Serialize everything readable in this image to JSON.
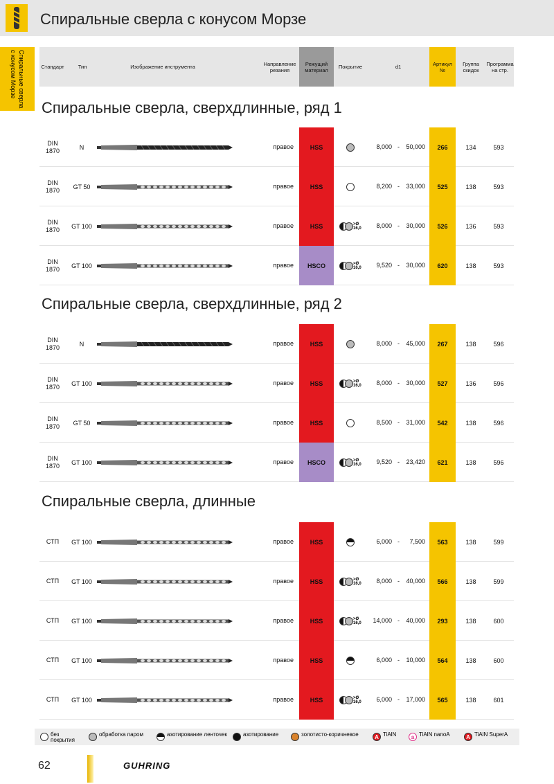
{
  "header": {
    "title": "Спиральные сверла с конусом Морзе"
  },
  "side_tab": {
    "lines": [
      "Спиральные сверла",
      "с конусом Морзе"
    ]
  },
  "columns": [
    "Стандарт",
    "Тип",
    "Изображение инструмента",
    "Направление резания",
    "Режущий материал",
    "Покрытие",
    "d1",
    "Артикул №",
    "Группа скидок",
    "Программа на стр."
  ],
  "sections": [
    {
      "title": "Спиральные сверла, сверхдлинные, ряд 1",
      "rows": [
        {
          "standard": "DIN 1870",
          "type": "N",
          "direction": "правое",
          "material": "HSS",
          "coating": "steam",
          "d1_from": "8,000",
          "dash": "-",
          "d1_to": "50,000",
          "article": "266",
          "group": "134",
          "page": "593"
        },
        {
          "standard": "DIN 1870",
          "type": "GT 50",
          "direction": "правое",
          "material": "HSS",
          "coating": "none",
          "d1_from": "8,200",
          "dash": "-",
          "d1_to": "33,000",
          "article": "525",
          "group": "138",
          "page": "593"
        },
        {
          "standard": "DIN 1870",
          "type": "GT 100",
          "direction": "правое",
          "material": "HSS",
          "coating": "split",
          "coating_note": ">Ø 16,0",
          "d1_from": "8,000",
          "dash": "-",
          "d1_to": "30,000",
          "article": "526",
          "group": "136",
          "page": "593"
        },
        {
          "standard": "DIN 1870",
          "type": "GT 100",
          "direction": "правое",
          "material": "HSCO",
          "coating": "split",
          "coating_note": ">Ø 16,0",
          "d1_from": "9,520",
          "dash": "-",
          "d1_to": "30,000",
          "article": "620",
          "group": "138",
          "page": "593"
        }
      ]
    },
    {
      "title": "Спиральные сверла, сверхдлинные, ряд 2",
      "rows": [
        {
          "standard": "DIN 1870",
          "type": "N",
          "direction": "правое",
          "material": "HSS",
          "coating": "steam",
          "d1_from": "8,000",
          "dash": "-",
          "d1_to": "45,000",
          "article": "267",
          "group": "138",
          "page": "596"
        },
        {
          "standard": "DIN 1870",
          "type": "GT 100",
          "direction": "правое",
          "material": "HSS",
          "coating": "split",
          "coating_note": ">Ø 16,0",
          "d1_from": "8,000",
          "dash": "-",
          "d1_to": "30,000",
          "article": "527",
          "group": "136",
          "page": "596"
        },
        {
          "standard": "DIN 1870",
          "type": "GT 50",
          "direction": "правое",
          "material": "HSS",
          "coating": "none",
          "d1_from": "8,500",
          "dash": "-",
          "d1_to": "31,000",
          "article": "542",
          "group": "138",
          "page": "596"
        },
        {
          "standard": "DIN 1870",
          "type": "GT 100",
          "direction": "правое",
          "material": "HSCO",
          "coating": "split",
          "coating_note": ">Ø 16,0",
          "d1_from": "9,520",
          "dash": "-",
          "d1_to": "23,420",
          "article": "621",
          "group": "138",
          "page": "596"
        }
      ]
    },
    {
      "title": "Спиральные сверла, длинные",
      "rows": [
        {
          "standard": "СТП",
          "type": "GT 100",
          "direction": "правое",
          "material": "HSS",
          "coating": "band",
          "d1_from": "6,000",
          "dash": "-",
          "d1_to": "7,500",
          "article": "563",
          "group": "138",
          "page": "599"
        },
        {
          "standard": "СТП",
          "type": "GT 100",
          "direction": "правое",
          "material": "HSS",
          "coating": "split",
          "coating_note": ">Ø 16,0",
          "d1_from": "8,000",
          "dash": "-",
          "d1_to": "40,000",
          "article": "566",
          "group": "138",
          "page": "599"
        },
        {
          "standard": "СТП",
          "type": "GT 100",
          "direction": "правое",
          "material": "HSS",
          "coating": "split",
          "coating_note": ">Ø 16,0",
          "d1_from": "14,000",
          "dash": "-",
          "d1_to": "40,000",
          "article": "293",
          "group": "138",
          "page": "600"
        },
        {
          "standard": "СТП",
          "type": "GT 100",
          "direction": "правое",
          "material": "HSS",
          "coating": "band",
          "d1_from": "6,000",
          "dash": "-",
          "d1_to": "10,000",
          "article": "564",
          "group": "138",
          "page": "600"
        },
        {
          "standard": "СТП",
          "type": "GT 100",
          "direction": "правое",
          "material": "HSS",
          "coating": "split",
          "coating_note": ">Ø 16,0",
          "d1_from": "6,000",
          "dash": "-",
          "d1_to": "17,000",
          "article": "565",
          "group": "138",
          "page": "601"
        }
      ]
    }
  ],
  "legend": [
    {
      "icon": "none",
      "label": "без покрытия"
    },
    {
      "icon": "steam",
      "label": "обработка паром"
    },
    {
      "icon": "band",
      "label": "азотирование ленточек"
    },
    {
      "icon": "black",
      "label": "азотирование"
    },
    {
      "icon": "gold",
      "label": "золотисто-коричневое"
    },
    {
      "icon": "red",
      "icon_text": "A",
      "label": "TiAlN"
    },
    {
      "icon": "pink",
      "icon_text": "a",
      "label": "TiAlN nanoA"
    },
    {
      "icon": "red",
      "icon_text": "A",
      "label": "TiAlN SuperA"
    }
  ],
  "footer": {
    "page_number": "62",
    "logo": "GUHRING"
  }
}
